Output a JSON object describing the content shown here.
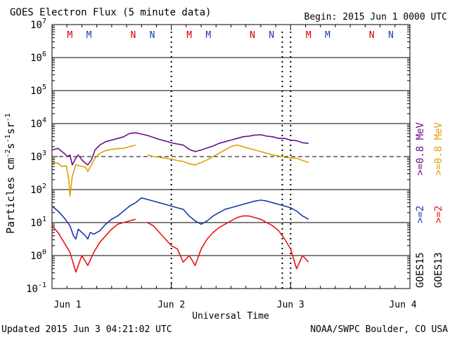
{
  "chart_data": {
    "type": "line",
    "title": "GOES Electron Flux (5 minute data)",
    "begin_label": "Begin: 2015 Jun 1 0000 UTC",
    "xlabel": "Universal Time",
    "ylabel_prefix": "Particles cm",
    "ylabel_sup1": "-2",
    "ylabel_s": "s",
    "ylabel_sup2": "-1",
    "ylabel_sr": "sr",
    "ylabel_sup3": "-1",
    "xlim_days": [
      0,
      3
    ],
    "ylim_log10": [
      -1,
      7
    ],
    "x_ticks": [
      {
        "day": 0,
        "label": "Jun 1"
      },
      {
        "day": 1,
        "label": "Jun 2"
      },
      {
        "day": 2,
        "label": "Jun 3"
      },
      {
        "day": 3,
        "label": "Jun 4"
      }
    ],
    "y_ticks": [
      {
        "exp": -1,
        "label": "10",
        "sup": "-1"
      },
      {
        "exp": 0,
        "label": "10",
        "sup": "0"
      },
      {
        "exp": 1,
        "label": "10",
        "sup": "1"
      },
      {
        "exp": 2,
        "label": "10",
        "sup": "2"
      },
      {
        "exp": 3,
        "label": "10",
        "sup": "3"
      },
      {
        "exp": 4,
        "label": "10",
        "sup": "4"
      },
      {
        "exp": 5,
        "label": "10",
        "sup": "5"
      },
      {
        "exp": 6,
        "label": "10",
        "sup": "6"
      },
      {
        "exp": 7,
        "label": "10",
        "sup": "7"
      }
    ],
    "threshold_log10": 3,
    "dotted_day_markers": [
      1.0,
      2.0
    ],
    "extra_dotted_markers": [
      1.93
    ],
    "mn_markers": [
      {
        "day": 0.15,
        "label": "M",
        "color": "#cc0000"
      },
      {
        "day": 0.31,
        "label": "M",
        "color": "#1a3aa8"
      },
      {
        "day": 0.68,
        "label": "N",
        "color": "#cc0000"
      },
      {
        "day": 0.84,
        "label": "N",
        "color": "#1a3aa8"
      },
      {
        "day": 1.15,
        "label": "M",
        "color": "#cc0000"
      },
      {
        "day": 1.31,
        "label": "M",
        "color": "#1a3aa8"
      },
      {
        "day": 1.68,
        "label": "N",
        "color": "#cc0000"
      },
      {
        "day": 1.84,
        "label": "N",
        "color": "#1a3aa8"
      },
      {
        "day": 2.15,
        "label": "M",
        "color": "#cc0000"
      },
      {
        "day": 2.31,
        "label": "M",
        "color": "#1a3aa8"
      },
      {
        "day": 2.68,
        "label": "N",
        "color": "#cc0000"
      },
      {
        "day": 2.84,
        "label": "N",
        "color": "#1a3aa8"
      }
    ],
    "legend": {
      "goes15_label": "GOES15",
      "goes13_label": "GOES13",
      "g15_08": ">=0.8  MeV",
      "g13_08": ">=0.8  MeV",
      "g15_2": ">=2",
      "g13_2": ">=2"
    },
    "series": [
      {
        "name": "GOES15 >=0.8 MeV",
        "color": "#6a0f8a",
        "x": [
          0.0,
          0.05,
          0.1,
          0.13,
          0.15,
          0.17,
          0.2,
          0.22,
          0.25,
          0.28,
          0.3,
          0.33,
          0.36,
          0.4,
          0.45,
          0.5,
          0.55,
          0.6,
          0.65,
          0.7,
          0.75,
          0.8,
          0.85,
          0.9,
          0.95,
          1.0,
          1.05,
          1.1,
          1.15,
          1.2,
          1.25,
          1.3,
          1.35,
          1.4,
          1.45,
          1.5,
          1.55,
          1.6,
          1.65,
          1.7,
          1.75,
          1.8,
          1.85,
          1.9,
          1.95,
          2.0,
          2.05,
          2.1,
          2.15
        ],
        "y": [
          3.2,
          3.25,
          3.1,
          3.0,
          3.05,
          2.75,
          2.95,
          3.05,
          2.9,
          2.8,
          2.75,
          2.9,
          3.2,
          3.35,
          3.45,
          3.5,
          3.55,
          3.6,
          3.7,
          3.72,
          3.68,
          3.64,
          3.58,
          3.52,
          3.47,
          3.42,
          3.38,
          3.35,
          3.22,
          3.15,
          3.2,
          3.26,
          3.32,
          3.4,
          3.45,
          3.5,
          3.55,
          3.6,
          3.62,
          3.65,
          3.66,
          3.62,
          3.6,
          3.55,
          3.55,
          3.5,
          3.48,
          3.42,
          3.4
        ]
      },
      {
        "name": "GOES13 >=0.8 MeV",
        "color": "#e0a000",
        "x": [
          0.0,
          0.05,
          0.08,
          0.12,
          0.14,
          0.15,
          0.17,
          0.2,
          0.25,
          0.28,
          0.3,
          0.33,
          0.36,
          0.4,
          0.45,
          0.5,
          0.55,
          0.6,
          0.65,
          0.7,
          0.75,
          0.8,
          0.85,
          0.9,
          0.95,
          1.0,
          1.05,
          1.1,
          1.15,
          1.2,
          1.25,
          1.3,
          1.35,
          1.4,
          1.45,
          1.5,
          1.55,
          1.6,
          1.65,
          1.7,
          1.75,
          1.8,
          1.85,
          1.9,
          1.95,
          2.0,
          2.05,
          2.1,
          2.15
        ],
        "y": [
          2.82,
          2.8,
          2.7,
          2.72,
          2.3,
          1.8,
          2.4,
          2.75,
          2.7,
          2.68,
          2.55,
          2.75,
          2.95,
          3.1,
          3.18,
          3.22,
          3.24,
          3.25,
          3.3,
          3.35,
          null,
          3.05,
          3.0,
          2.98,
          2.95,
          2.92,
          2.88,
          2.85,
          2.78,
          2.75,
          2.82,
          2.9,
          3.0,
          3.1,
          3.2,
          3.3,
          3.35,
          3.3,
          3.25,
          3.2,
          3.15,
          3.1,
          3.05,
          3.02,
          2.98,
          2.96,
          2.95,
          2.88,
          2.82
        ]
      },
      {
        "name": "GOES15 >=2 MeV",
        "color": "#1a3aa8",
        "x": [
          0.0,
          0.05,
          0.1,
          0.15,
          0.18,
          0.2,
          0.22,
          0.25,
          0.28,
          0.3,
          0.32,
          0.35,
          0.4,
          0.45,
          0.5,
          0.55,
          0.6,
          0.65,
          0.7,
          0.75,
          0.8,
          0.85,
          0.9,
          0.95,
          1.0,
          1.05,
          1.1,
          1.15,
          1.2,
          1.25,
          1.3,
          1.35,
          1.4,
          1.45,
          1.5,
          1.55,
          1.6,
          1.65,
          1.7,
          1.75,
          1.8,
          1.85,
          1.9,
          1.95,
          2.0,
          2.05,
          2.1,
          2.15
        ],
        "y": [
          1.5,
          1.35,
          1.15,
          0.9,
          0.6,
          0.5,
          0.8,
          0.7,
          0.6,
          0.5,
          0.7,
          0.65,
          0.75,
          0.95,
          1.1,
          1.2,
          1.35,
          1.5,
          1.6,
          1.75,
          1.7,
          1.65,
          1.6,
          1.55,
          1.5,
          1.45,
          1.4,
          1.2,
          1.05,
          0.95,
          1.05,
          1.2,
          1.3,
          1.4,
          1.45,
          1.5,
          1.55,
          1.6,
          1.65,
          1.68,
          1.65,
          1.6,
          1.55,
          1.5,
          1.45,
          1.35,
          1.2,
          1.1
        ]
      },
      {
        "name": "GOES13 >=2 MeV",
        "color": "#ee1111",
        "x": [
          0.0,
          0.05,
          0.1,
          0.15,
          0.2,
          0.25,
          0.3,
          0.35,
          0.4,
          0.45,
          0.5,
          0.55,
          0.6,
          0.65,
          0.7,
          0.75,
          0.8,
          0.85,
          0.9,
          0.95,
          1.0,
          1.05,
          1.1,
          1.15,
          1.2,
          1.25,
          1.3,
          1.35,
          1.4,
          1.45,
          1.5,
          1.55,
          1.6,
          1.65,
          1.7,
          1.75,
          1.8,
          1.85,
          1.9,
          1.95,
          2.0,
          2.05,
          2.1,
          2.15
        ],
        "y": [
          0.9,
          0.7,
          0.4,
          0.1,
          -0.5,
          0.0,
          -0.3,
          0.1,
          0.4,
          0.6,
          0.8,
          0.95,
          1.0,
          1.05,
          1.1,
          null,
          1.0,
          0.9,
          0.7,
          0.5,
          0.3,
          0.2,
          -0.2,
          0.0,
          -0.3,
          0.2,
          0.5,
          0.7,
          0.85,
          0.95,
          1.05,
          1.15,
          1.2,
          1.2,
          1.15,
          1.1,
          1.0,
          0.9,
          0.75,
          0.5,
          0.2,
          -0.4,
          0.0,
          -0.2
        ]
      }
    ]
  },
  "footer": {
    "updated": "Updated 2015 Jun  3 04:21:02 UTC",
    "credit": "NOAA/SWPC Boulder, CO USA"
  }
}
